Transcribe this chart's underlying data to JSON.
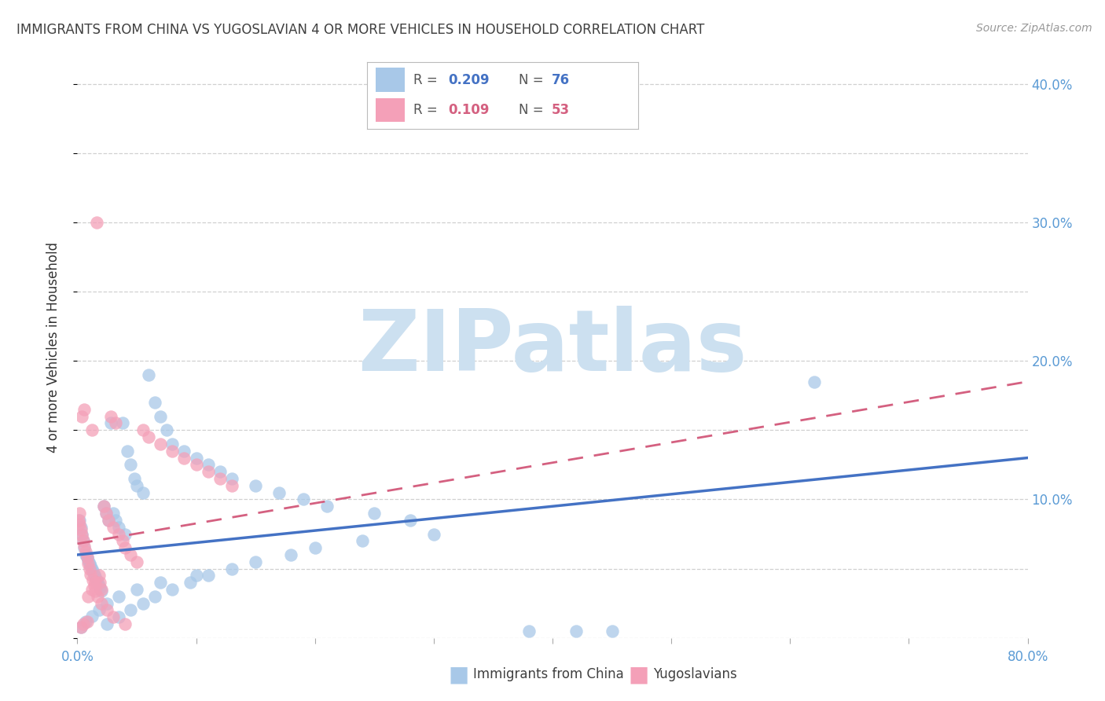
{
  "title": "IMMIGRANTS FROM CHINA VS YUGOSLAVIAN 4 OR MORE VEHICLES IN HOUSEHOLD CORRELATION CHART",
  "source": "Source: ZipAtlas.com",
  "ylabel": "4 or more Vehicles in Household",
  "xlim": [
    0.0,
    0.8
  ],
  "ylim": [
    0.0,
    0.42
  ],
  "xticks": [
    0.0,
    0.1,
    0.2,
    0.3,
    0.4,
    0.5,
    0.6,
    0.7,
    0.8
  ],
  "xtick_labels": [
    "0.0%",
    "",
    "",
    "",
    "",
    "",
    "",
    "",
    "80.0%"
  ],
  "yticks_right": [
    0.1,
    0.2,
    0.3,
    0.4
  ],
  "ytick_labels_right": [
    "10.0%",
    "20.0%",
    "30.0%",
    "40.0%"
  ],
  "legend_label1": "Immigrants from China",
  "legend_label2": "Yugoslavians",
  "R1": 0.209,
  "N1": 76,
  "R2": 0.109,
  "N2": 53,
  "color_blue": "#a8c8e8",
  "color_pink": "#f4a0b8",
  "color_blue_line": "#4472c4",
  "color_pink_line": "#d46080",
  "color_axis": "#5b9bd5",
  "watermark_color": "#cce0f0",
  "title_color": "#404040",
  "background": "#ffffff",
  "grid_color": "#d0d0d0",
  "blue_x": [
    0.002,
    0.003,
    0.004,
    0.005,
    0.006,
    0.007,
    0.008,
    0.009,
    0.01,
    0.011,
    0.012,
    0.013,
    0.014,
    0.015,
    0.016,
    0.017,
    0.018,
    0.019,
    0.02,
    0.022,
    0.024,
    0.026,
    0.028,
    0.03,
    0.032,
    0.035,
    0.038,
    0.04,
    0.042,
    0.045,
    0.048,
    0.05,
    0.055,
    0.06,
    0.065,
    0.07,
    0.075,
    0.08,
    0.09,
    0.1,
    0.11,
    0.12,
    0.13,
    0.15,
    0.17,
    0.19,
    0.21,
    0.25,
    0.28,
    0.025,
    0.035,
    0.045,
    0.055,
    0.065,
    0.08,
    0.095,
    0.11,
    0.13,
    0.15,
    0.18,
    0.2,
    0.24,
    0.3,
    0.38,
    0.42,
    0.45,
    0.003,
    0.007,
    0.012,
    0.018,
    0.025,
    0.035,
    0.05,
    0.07,
    0.1,
    0.62
  ],
  "blue_y": [
    0.085,
    0.08,
    0.075,
    0.07,
    0.065,
    0.06,
    0.058,
    0.056,
    0.054,
    0.052,
    0.05,
    0.048,
    0.046,
    0.044,
    0.042,
    0.04,
    0.038,
    0.036,
    0.034,
    0.095,
    0.09,
    0.085,
    0.155,
    0.09,
    0.085,
    0.08,
    0.155,
    0.075,
    0.135,
    0.125,
    0.115,
    0.11,
    0.105,
    0.19,
    0.17,
    0.16,
    0.15,
    0.14,
    0.135,
    0.13,
    0.125,
    0.12,
    0.115,
    0.11,
    0.105,
    0.1,
    0.095,
    0.09,
    0.085,
    0.01,
    0.015,
    0.02,
    0.025,
    0.03,
    0.035,
    0.04,
    0.045,
    0.05,
    0.055,
    0.06,
    0.065,
    0.07,
    0.075,
    0.005,
    0.005,
    0.005,
    0.008,
    0.012,
    0.016,
    0.02,
    0.025,
    0.03,
    0.035,
    0.04,
    0.045,
    0.185
  ],
  "pink_x": [
    0.001,
    0.002,
    0.003,
    0.004,
    0.005,
    0.006,
    0.007,
    0.008,
    0.009,
    0.01,
    0.011,
    0.012,
    0.013,
    0.014,
    0.015,
    0.016,
    0.017,
    0.018,
    0.019,
    0.02,
    0.022,
    0.024,
    0.026,
    0.028,
    0.03,
    0.032,
    0.035,
    0.038,
    0.04,
    0.045,
    0.05,
    0.055,
    0.06,
    0.07,
    0.08,
    0.09,
    0.1,
    0.11,
    0.12,
    0.13,
    0.003,
    0.005,
    0.008,
    0.002,
    0.004,
    0.006,
    0.009,
    0.012,
    0.015,
    0.02,
    0.025,
    0.03,
    0.04
  ],
  "pink_y": [
    0.085,
    0.082,
    0.078,
    0.074,
    0.07,
    0.066,
    0.062,
    0.058,
    0.054,
    0.05,
    0.046,
    0.15,
    0.042,
    0.038,
    0.034,
    0.3,
    0.03,
    0.045,
    0.04,
    0.035,
    0.095,
    0.09,
    0.085,
    0.16,
    0.08,
    0.155,
    0.075,
    0.07,
    0.065,
    0.06,
    0.055,
    0.15,
    0.145,
    0.14,
    0.135,
    0.13,
    0.125,
    0.12,
    0.115,
    0.11,
    0.008,
    0.01,
    0.012,
    0.09,
    0.16,
    0.165,
    0.03,
    0.035,
    0.04,
    0.025,
    0.02,
    0.015,
    0.01
  ],
  "blue_trend_x": [
    0.0,
    0.8
  ],
  "blue_trend_y": [
    0.06,
    0.13
  ],
  "pink_trend_x": [
    0.0,
    0.8
  ],
  "pink_trend_y": [
    0.068,
    0.185
  ]
}
